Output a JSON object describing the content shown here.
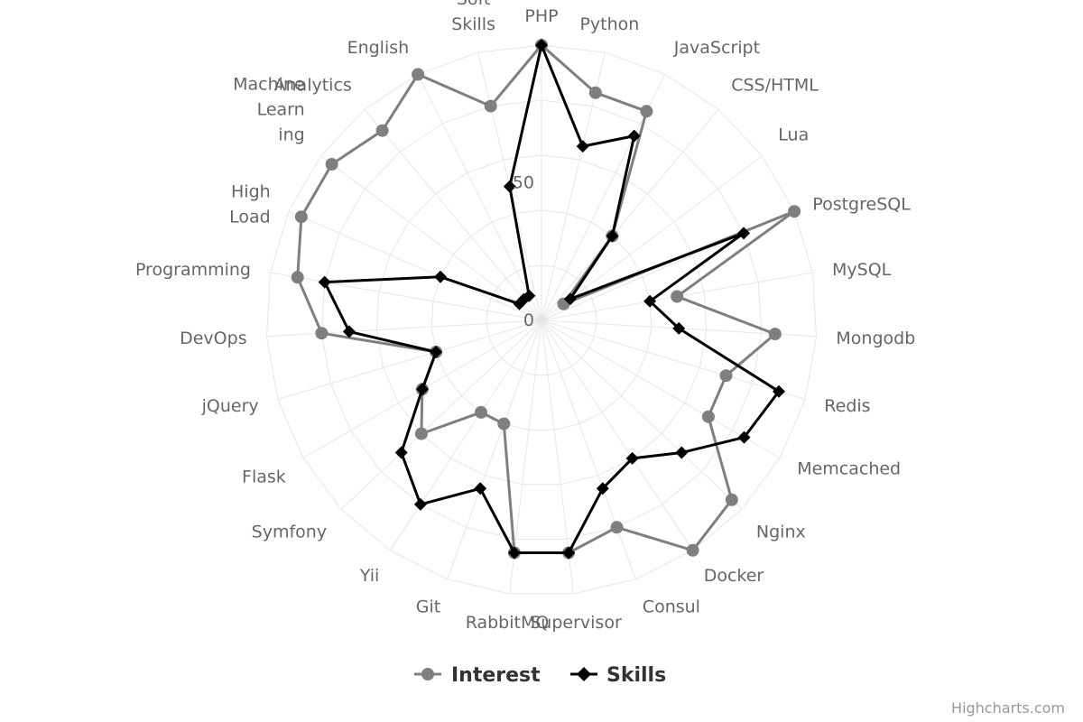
{
  "chart_data": {
    "type": "line",
    "polar": true,
    "categories": [
      "PHP",
      "Python",
      "JavaScript",
      "CSS/HTML",
      "Lua",
      "PostgreSQL",
      "MySQL",
      "Mongodb",
      "Redis",
      "Memcached",
      "Nginx",
      "Docker",
      "Consul",
      "Supervisor",
      "RabbitMQ",
      "Git",
      "Yii",
      "Symfony",
      "Flask",
      "jQuery",
      "DevOps",
      "Programming",
      "High Load",
      "Machine Learn ing",
      "Analytics",
      "English",
      "Soft Skills"
    ],
    "category_lines": {
      "Soft Skills": [
        "Soft",
        "Skills"
      ],
      "High Load": [
        "High",
        "Load"
      ],
      "Machine Learn ing": [
        "Machine",
        "Learn",
        "ing"
      ]
    },
    "y_ticks": [
      "0",
      "50"
    ],
    "ylim": [
      0,
      100
    ],
    "series": [
      {
        "name": "Interest",
        "color": "#7f7f7f",
        "marker": "circle",
        "values": [
          100,
          85,
          85,
          40,
          10,
          100,
          50,
          85,
          70,
          70,
          95,
          100,
          80,
          85,
          85,
          40,
          40,
          60,
          50,
          40,
          80,
          90,
          95,
          95,
          90,
          100,
          80
        ]
      },
      {
        "name": "Skills",
        "color": "#000000",
        "marker": "diamond",
        "values": [
          100,
          65,
          75,
          40,
          13,
          80,
          40,
          50,
          90,
          85,
          70,
          60,
          65,
          85,
          85,
          65,
          80,
          70,
          50,
          40,
          70,
          80,
          40,
          10,
          10,
          10,
          50
        ]
      }
    ]
  },
  "credits": "Highcharts.com"
}
